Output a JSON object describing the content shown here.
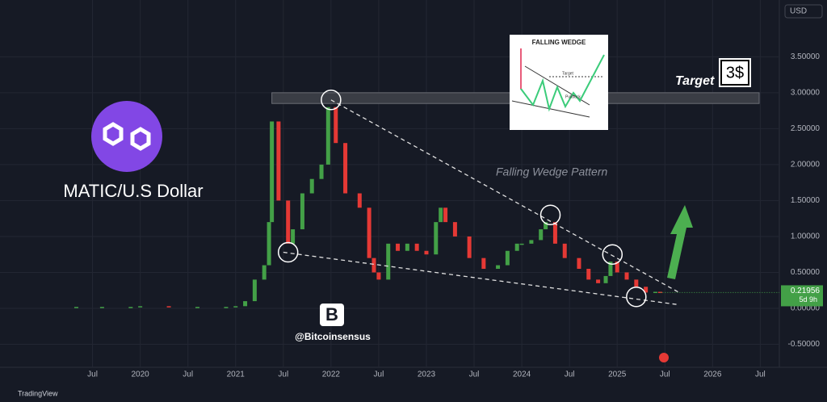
{
  "chart_data": {
    "type": "candle",
    "currency": "USD",
    "title": "MATIC/U.S Dollar",
    "annotation": "Falling Wedge Pattern",
    "target_label": "Target",
    "target_value": "3$",
    "watermark": "@Bitcoinsensus",
    "brand": "TradingView",
    "inset": {
      "title": "FALLING WEDGE",
      "target": "Target",
      "pullback": "Pullback"
    },
    "last_price": 0.21956,
    "countdown": "5d 9h",
    "xlim": [
      2018.53,
      2026.7
    ],
    "ylim": [
      -0.82,
      4.29
    ],
    "xticks": [
      {
        "value": 2019.5,
        "label": "Jul"
      },
      2020,
      {
        "value": 2020.5,
        "label": "Jul"
      },
      2021,
      {
        "value": 2021.5,
        "label": "Jul"
      },
      2022,
      {
        "value": 2022.5,
        "label": "Jul"
      },
      2023,
      {
        "value": 2023.5,
        "label": "Jul"
      },
      2024,
      {
        "value": 2024.5,
        "label": "Jul"
      },
      2025,
      {
        "value": 2025.5,
        "label": "Jul"
      },
      2026,
      {
        "value": 2026.5,
        "label": "Jul"
      }
    ],
    "yticks": [
      {
        "value": -0.5,
        "label": "-0.50000"
      },
      {
        "value": 0,
        "label": "0.00000"
      },
      {
        "value": 0.5,
        "label": "0.50000"
      },
      {
        "value": 1,
        "label": "1.00000"
      },
      {
        "value": 1.5,
        "label": "1.50000"
      },
      {
        "value": 2,
        "label": "2.00000"
      },
      {
        "value": 2.5,
        "label": "2.50000"
      },
      {
        "value": 3,
        "label": "3.00000"
      },
      {
        "value": 3.5,
        "label": "3.50000"
      }
    ],
    "grid": true,
    "up_color": "#43a047",
    "down_color": "#e53935",
    "x": [
      2019.33,
      2019.6,
      2019.9,
      2020.0,
      2020.3,
      2020.6,
      2020.9,
      2021.0,
      2021.1,
      2021.2,
      2021.3,
      2021.35,
      2021.38,
      2021.45,
      2021.55,
      2021.6,
      2021.7,
      2021.8,
      2021.9,
      2021.97,
      2022.05,
      2022.15,
      2022.3,
      2022.4,
      2022.45,
      2022.5,
      2022.6,
      2022.7,
      2022.8,
      2022.9,
      2023.0,
      2023.1,
      2023.15,
      2023.2,
      2023.3,
      2023.45,
      2023.6,
      2023.75,
      2023.85,
      2023.95,
      2024.0,
      2024.1,
      2024.2,
      2024.25,
      2024.35,
      2024.45,
      2024.6,
      2024.7,
      2024.8,
      2024.88,
      2024.93,
      2025.0,
      2025.1,
      2025.2,
      2025.3,
      2025.4,
      2025.45
    ],
    "values": [
      0.02,
      0.02,
      0.02,
      0.03,
      0.015,
      0.02,
      0.02,
      0.03,
      0.1,
      0.4,
      0.6,
      1.2,
      2.6,
      1.5,
      0.9,
      1.1,
      1.6,
      1.8,
      2.0,
      2.8,
      2.3,
      1.6,
      1.4,
      0.7,
      0.5,
      0.4,
      0.9,
      0.8,
      0.9,
      0.8,
      0.75,
      1.2,
      1.4,
      1.2,
      1.0,
      0.7,
      0.55,
      0.6,
      0.8,
      0.9,
      0.9,
      0.95,
      1.1,
      1.2,
      0.9,
      0.7,
      0.55,
      0.4,
      0.35,
      0.45,
      0.65,
      0.5,
      0.4,
      0.3,
      0.22,
      0.23,
      0.22
    ],
    "resistance_zone": [
      2.85,
      3.0
    ],
    "trendlines": [
      {
        "x": [
          2022.0,
          2025.65
        ],
        "y": [
          2.9,
          0.22
        ]
      },
      {
        "x": [
          2021.5,
          2025.65
        ],
        "y": [
          0.78,
          0.05
        ]
      }
    ],
    "touch_points": {
      "x": [
        2022.0,
        2024.3,
        2024.95,
        2021.55,
        2025.2
      ],
      "y": [
        2.9,
        1.3,
        0.75,
        0.78,
        0.16
      ]
    }
  }
}
